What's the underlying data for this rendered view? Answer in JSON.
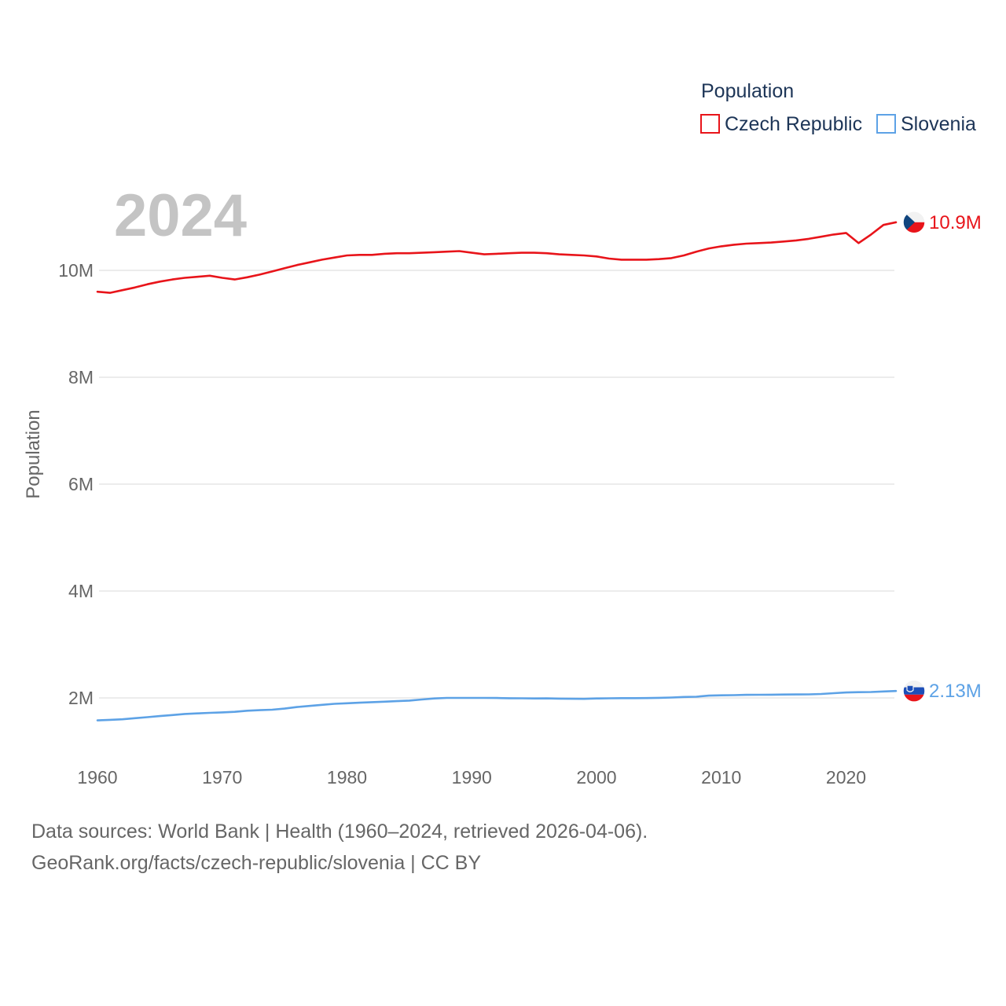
{
  "chart_data": {
    "type": "line",
    "year_label": "2024",
    "ylabel": "Population",
    "xlabel": "",
    "xlim": [
      1960,
      2024
    ],
    "ylim": [
      1000000,
      11500000
    ],
    "y_ticks": [
      2000000,
      4000000,
      6000000,
      8000000,
      10000000
    ],
    "y_tick_labels": [
      "2M",
      "4M",
      "6M",
      "8M",
      "10M"
    ],
    "x_ticks": [
      1960,
      1970,
      1980,
      1990,
      2000,
      2010,
      2020
    ],
    "x_tick_labels": [
      "1960",
      "1970",
      "1980",
      "1990",
      "2000",
      "2010",
      "2020"
    ],
    "legend": {
      "title": "Population",
      "position": "top-right",
      "entries": [
        "Czech Republic",
        "Slovenia"
      ]
    },
    "x": [
      1960,
      1961,
      1962,
      1963,
      1964,
      1965,
      1966,
      1967,
      1968,
      1969,
      1970,
      1971,
      1972,
      1973,
      1974,
      1975,
      1976,
      1977,
      1978,
      1979,
      1980,
      1981,
      1982,
      1983,
      1984,
      1985,
      1986,
      1987,
      1988,
      1989,
      1990,
      1991,
      1992,
      1993,
      1994,
      1995,
      1996,
      1997,
      1998,
      1999,
      2000,
      2001,
      2002,
      2003,
      2004,
      2005,
      2006,
      2007,
      2008,
      2009,
      2010,
      2011,
      2012,
      2013,
      2014,
      2015,
      2016,
      2017,
      2018,
      2019,
      2020,
      2021,
      2022,
      2023,
      2024
    ],
    "series": [
      {
        "name": "Czech Republic",
        "color": "#e8141a",
        "end_label": "10.9M",
        "flag": "czech-flag",
        "values": [
          9600000,
          9580000,
          9630000,
          9680000,
          9740000,
          9790000,
          9830000,
          9860000,
          9880000,
          9900000,
          9860000,
          9830000,
          9870000,
          9920000,
          9980000,
          10040000,
          10100000,
          10150000,
          10200000,
          10240000,
          10280000,
          10290000,
          10290000,
          10310000,
          10320000,
          10320000,
          10330000,
          10340000,
          10350000,
          10360000,
          10330000,
          10300000,
          10310000,
          10320000,
          10330000,
          10330000,
          10320000,
          10300000,
          10290000,
          10280000,
          10260000,
          10220000,
          10200000,
          10200000,
          10200000,
          10210000,
          10230000,
          10280000,
          10350000,
          10410000,
          10450000,
          10480000,
          10500000,
          10510000,
          10520000,
          10540000,
          10560000,
          10590000,
          10630000,
          10670000,
          10700000,
          10510000,
          10670000,
          10850000,
          10900000
        ]
      },
      {
        "name": "Slovenia",
        "color": "#5da2e6",
        "end_label": "2.13M",
        "flag": "slovenia-flag",
        "values": [
          1580000,
          1590000,
          1600000,
          1620000,
          1640000,
          1660000,
          1680000,
          1700000,
          1710000,
          1720000,
          1730000,
          1740000,
          1760000,
          1770000,
          1780000,
          1800000,
          1830000,
          1850000,
          1870000,
          1890000,
          1900000,
          1910000,
          1920000,
          1930000,
          1940000,
          1950000,
          1970000,
          1990000,
          2000000,
          2000000,
          2000000,
          2000000,
          1999000,
          1994000,
          1992000,
          1990000,
          1991000,
          1987000,
          1984000,
          1983000,
          1989000,
          1992000,
          1995000,
          1996000,
          1997000,
          2001000,
          2008000,
          2018000,
          2022000,
          2042000,
          2049000,
          2052000,
          2057000,
          2059000,
          2061000,
          2063000,
          2065000,
          2066000,
          2073000,
          2088000,
          2102000,
          2108000,
          2111000,
          2120000,
          2130000
        ]
      }
    ]
  },
  "footer": {
    "source": "Data sources: World Bank | Health (1960–2024, retrieved 2026-04-06).",
    "credit": "GeoRank.org/facts/czech-republic/slovenia | CC BY"
  },
  "colors": {
    "czech_red": "#e8141a",
    "czech_blue": "#11457e",
    "slovenia_blue": "#5da2e6",
    "grid": "#e6e6e6",
    "text_gray": "#666666",
    "legend_navy": "#1d3557"
  }
}
